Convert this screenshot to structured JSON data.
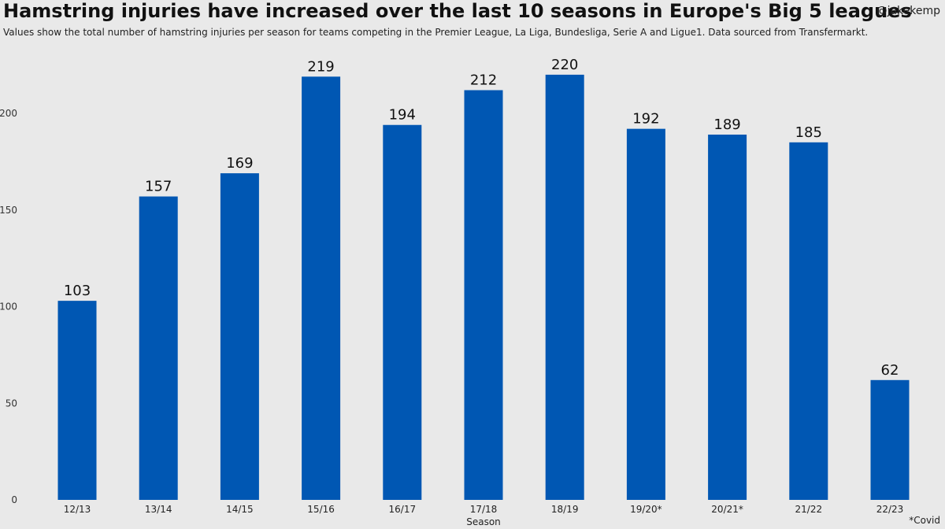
{
  "header": {
    "title": "Hamstring injuries have increased over the last 10 seasons in Europe's Big 5 leagues",
    "subtitle": "Values show the total number of hamstring injuries per season for teams competing in the Premier League, La Liga, Bundesliga, Serie A and Ligue1. Data sourced from Transfermarkt.",
    "handle": "@jakekemp"
  },
  "footer": {
    "note": "*Covid"
  },
  "colors": {
    "bar": "#0057b3",
    "background": "#e9e9e9"
  },
  "chart_data": {
    "type": "bar",
    "title": "Hamstring injuries have increased over the last 10 seasons in Europe's Big 5 leagues",
    "xlabel": "Season",
    "ylabel": "",
    "categories": [
      "12/13",
      "13/14",
      "14/15",
      "15/16",
      "16/17",
      "17/18",
      "18/19",
      "19/20*",
      "20/21*",
      "21/22",
      "22/23"
    ],
    "values": [
      103,
      157,
      169,
      219,
      194,
      212,
      220,
      192,
      189,
      185,
      62
    ],
    "yticks": [
      0,
      50,
      100,
      150,
      200
    ],
    "ylim": [
      0,
      225
    ],
    "grid": false,
    "legend": "none",
    "data_labels": true
  }
}
